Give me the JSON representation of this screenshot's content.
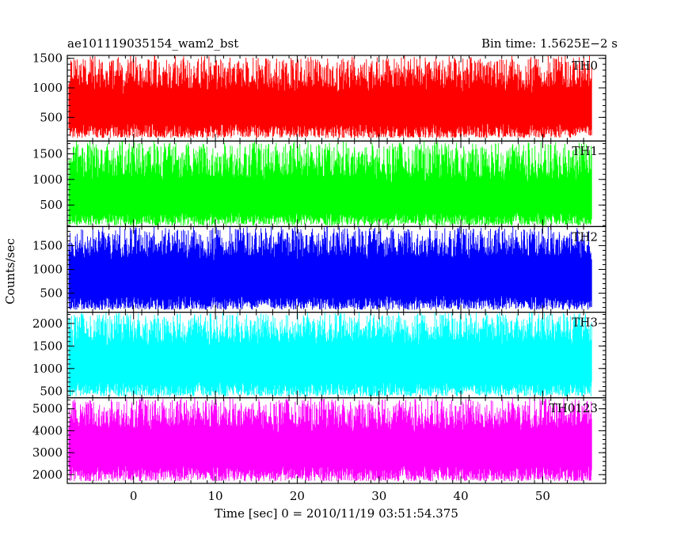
{
  "header": {
    "left_title": "ae101119035154_wam2_bst",
    "right_title": "Bin time: 1.5625E−2 s"
  },
  "chart_data": {
    "type": "line",
    "title": "ae101119035154_wam2_bst",
    "subtitle": "Bin time: 1.5625E−2 s",
    "xlabel": "Time [sec] 0 = 2010/11/19 03:51:54.375",
    "ylabel": "Counts/sec",
    "xlim": [
      -8.1,
      57.7
    ],
    "xticks": [
      0,
      10,
      20,
      30,
      40,
      50
    ],
    "grid": false,
    "panels": [
      {
        "name": "TH0",
        "color": "#ff0000",
        "ylim": [
          100,
          1550
        ],
        "yticks": [
          500,
          1000,
          1500
        ],
        "data_x_range": [
          -7.9,
          56.0
        ],
        "baseline": 640,
        "envelope_low": [
          150,
          400
        ],
        "envelope_high": [
          1050,
          1550
        ]
      },
      {
        "name": "TH1",
        "color": "#00ff00",
        "ylim": [
          80,
          1750
        ],
        "yticks": [
          500,
          1000,
          1500
        ],
        "data_x_range": [
          -7.9,
          56.0
        ],
        "baseline": 670,
        "envelope_low": [
          100,
          350
        ],
        "envelope_high": [
          1100,
          1750
        ]
      },
      {
        "name": "TH2",
        "color": "#0000ff",
        "ylim": [
          100,
          1900
        ],
        "yticks": [
          500,
          1000,
          1500
        ],
        "data_x_range": [
          -7.9,
          56.0
        ],
        "baseline": 850,
        "envelope_low": [
          150,
          450
        ],
        "envelope_high": [
          1350,
          1900
        ]
      },
      {
        "name": "TH3",
        "color": "#00ffff",
        "ylim": [
          350,
          2250
        ],
        "yticks": [
          500,
          1000,
          1500,
          2000
        ],
        "data_x_range": [
          -7.9,
          56.0
        ],
        "baseline": 1150,
        "envelope_low": [
          380,
          700
        ],
        "envelope_high": [
          1700,
          2250
        ]
      },
      {
        "name": "TH0123",
        "color": "#ff00ff",
        "ylim": [
          1600,
          5500
        ],
        "yticks": [
          2000,
          3000,
          4000,
          5000
        ],
        "data_x_range": [
          -7.9,
          56.0
        ],
        "baseline": 3300,
        "envelope_low": [
          1700,
          2400
        ],
        "envelope_high": [
          4300,
          5500
        ]
      }
    ]
  }
}
